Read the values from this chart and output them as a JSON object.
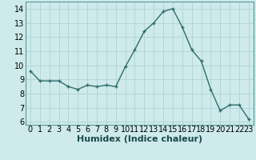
{
  "x": [
    0,
    1,
    2,
    3,
    4,
    5,
    6,
    7,
    8,
    9,
    10,
    11,
    12,
    13,
    14,
    15,
    16,
    17,
    18,
    19,
    20,
    21,
    22,
    23
  ],
  "y": [
    9.6,
    8.9,
    8.9,
    8.9,
    8.5,
    8.3,
    8.6,
    8.5,
    8.6,
    8.5,
    9.9,
    11.1,
    12.4,
    13.0,
    13.8,
    14.0,
    12.7,
    11.1,
    10.3,
    8.3,
    6.8,
    7.2,
    7.2,
    6.2
  ],
  "xlabel": "Humidex (Indice chaleur)",
  "ylim": [
    5.8,
    14.5
  ],
  "xlim": [
    -0.5,
    23.5
  ],
  "yticks": [
    6,
    7,
    8,
    9,
    10,
    11,
    12,
    13,
    14
  ],
  "xticks": [
    0,
    1,
    2,
    3,
    4,
    5,
    6,
    7,
    8,
    9,
    10,
    11,
    12,
    13,
    14,
    15,
    16,
    17,
    18,
    19,
    20,
    21,
    22,
    23
  ],
  "line_color": "#2e6e6b",
  "bg_color": "#ceeaea",
  "grid_color": "#aed4d4",
  "axis_bg": "#ceeaea",
  "xlabel_fontsize": 8,
  "tick_fontsize": 7
}
